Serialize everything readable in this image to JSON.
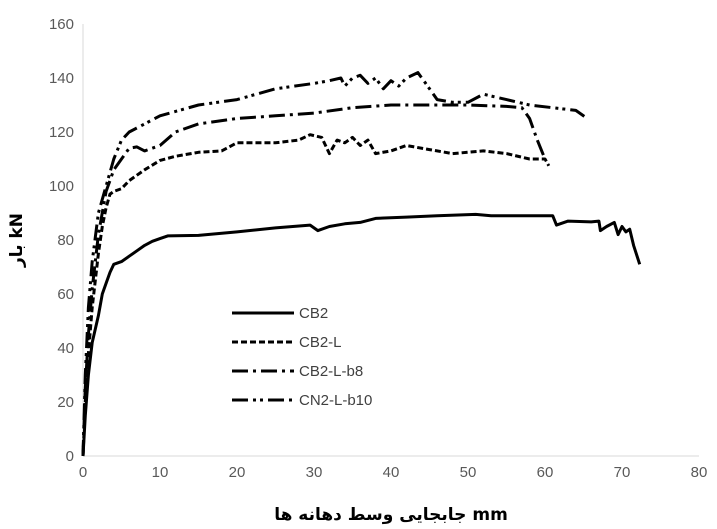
{
  "chart_data": {
    "type": "line",
    "title": "",
    "xlabel": "جابجایی وسط دهانه ها mm",
    "ylabel": "بار kN",
    "xlim": [
      0,
      80
    ],
    "ylim": [
      0,
      160
    ],
    "x_ticks": [
      0,
      10,
      20,
      30,
      40,
      50,
      60,
      70,
      80
    ],
    "y_ticks": [
      0,
      20,
      40,
      60,
      80,
      100,
      120,
      140,
      160
    ],
    "grid": false,
    "legend_position": "center-left",
    "series": [
      {
        "name": "CB2",
        "dash": "solid",
        "points": [
          [
            0,
            0
          ],
          [
            0.3,
            15
          ],
          [
            0.7,
            30
          ],
          [
            1.2,
            42
          ],
          [
            2,
            52
          ],
          [
            2.5,
            60
          ],
          [
            3,
            64
          ],
          [
            3.5,
            68
          ],
          [
            4,
            71
          ],
          [
            5,
            72
          ],
          [
            6,
            74
          ],
          [
            7,
            76
          ],
          [
            8,
            78
          ],
          [
            9,
            79.5
          ],
          [
            10,
            80.5
          ],
          [
            11,
            81.5
          ],
          [
            15,
            81.7
          ],
          [
            20,
            83
          ],
          [
            25,
            84.5
          ],
          [
            29.5,
            85.5
          ],
          [
            30.5,
            83.5
          ],
          [
            32,
            85
          ],
          [
            34,
            86
          ],
          [
            36,
            86.5
          ],
          [
            38,
            88
          ],
          [
            42,
            88.5
          ],
          [
            46,
            89
          ],
          [
            51,
            89.5
          ],
          [
            53,
            89
          ],
          [
            61,
            89
          ],
          [
            61.5,
            85.5
          ],
          [
            63,
            87
          ],
          [
            66,
            86.7
          ],
          [
            67,
            87
          ],
          [
            67.2,
            83.5
          ],
          [
            68,
            85
          ],
          [
            69,
            86.5
          ],
          [
            69.5,
            82
          ],
          [
            70,
            85
          ],
          [
            70.5,
            83
          ],
          [
            71,
            84
          ],
          [
            71.5,
            78
          ],
          [
            72.3,
            71
          ]
        ]
      },
      {
        "name": "CB2-L",
        "dash": "short-dash",
        "points": [
          [
            0,
            0
          ],
          [
            0.3,
            20
          ],
          [
            0.7,
            38
          ],
          [
            1.2,
            55
          ],
          [
            2,
            75
          ],
          [
            2.5,
            85
          ],
          [
            3,
            92
          ],
          [
            3.5,
            97
          ],
          [
            4,
            98
          ],
          [
            5,
            99
          ],
          [
            6,
            102
          ],
          [
            8,
            106
          ],
          [
            10,
            109.5
          ],
          [
            12,
            111
          ],
          [
            15,
            112.5
          ],
          [
            18,
            113
          ],
          [
            20,
            116
          ],
          [
            25,
            116
          ],
          [
            28,
            117
          ],
          [
            29.5,
            119
          ],
          [
            31,
            118
          ],
          [
            32,
            112
          ],
          [
            33,
            117
          ],
          [
            34,
            116
          ],
          [
            35,
            118
          ],
          [
            36,
            115
          ],
          [
            37,
            117
          ],
          [
            38,
            112
          ],
          [
            40,
            113
          ],
          [
            42,
            115
          ],
          [
            45,
            113.5
          ],
          [
            48,
            112
          ],
          [
            52,
            113
          ],
          [
            55,
            112
          ],
          [
            58,
            110
          ],
          [
            60,
            110
          ],
          [
            60.5,
            107.5
          ]
        ]
      },
      {
        "name": "CB2-L-b8",
        "dash": "long-dash-dot",
        "points": [
          [
            0,
            0
          ],
          [
            0.3,
            25
          ],
          [
            0.7,
            45
          ],
          [
            1.2,
            62
          ],
          [
            2,
            82
          ],
          [
            3,
            98
          ],
          [
            4,
            106
          ],
          [
            5,
            110
          ],
          [
            6,
            114
          ],
          [
            7,
            114.5
          ],
          [
            8,
            113
          ],
          [
            10,
            115
          ],
          [
            12,
            120
          ],
          [
            15,
            123
          ],
          [
            20,
            125
          ],
          [
            25,
            126
          ],
          [
            30,
            127
          ],
          [
            35,
            129
          ],
          [
            40,
            130
          ],
          [
            45,
            130
          ],
          [
            50,
            130
          ],
          [
            55,
            129.5
          ],
          [
            57,
            129
          ],
          [
            58,
            125
          ],
          [
            59,
            117
          ],
          [
            60,
            110
          ]
        ]
      },
      {
        "name": "CN2-L-b10",
        "dash": "long-dash-dot-dot",
        "points": [
          [
            0,
            0
          ],
          [
            0.3,
            30
          ],
          [
            0.7,
            55
          ],
          [
            1.2,
            72
          ],
          [
            2,
            90
          ],
          [
            3,
            100
          ],
          [
            4,
            110
          ],
          [
            5,
            117
          ],
          [
            6,
            120
          ],
          [
            8,
            123
          ],
          [
            10,
            126
          ],
          [
            15,
            130
          ],
          [
            20,
            132
          ],
          [
            25,
            136
          ],
          [
            30,
            138
          ],
          [
            32,
            139
          ],
          [
            33.5,
            140
          ],
          [
            34,
            137
          ],
          [
            35,
            140
          ],
          [
            36,
            141
          ],
          [
            37,
            138
          ],
          [
            38,
            140
          ],
          [
            39,
            136
          ],
          [
            40,
            139
          ],
          [
            41,
            137
          ],
          [
            42,
            140
          ],
          [
            43.5,
            142
          ],
          [
            44.5,
            138
          ],
          [
            46,
            132
          ],
          [
            48,
            131
          ],
          [
            50,
            131
          ],
          [
            52,
            134
          ],
          [
            55,
            132
          ],
          [
            58,
            130
          ],
          [
            61,
            129
          ],
          [
            64,
            128
          ],
          [
            65.5,
            125
          ]
        ]
      }
    ]
  }
}
